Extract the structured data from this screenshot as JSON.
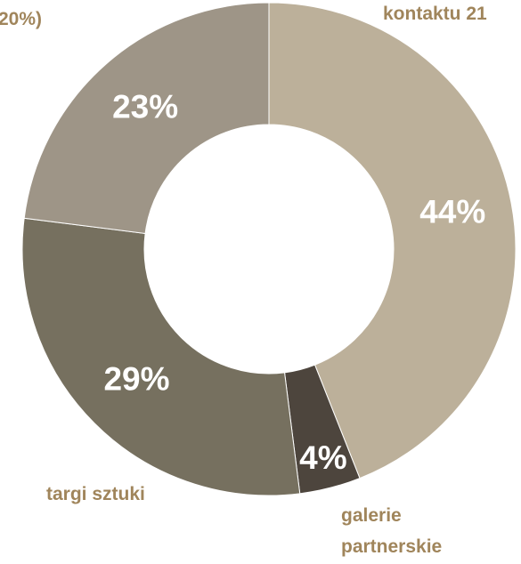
{
  "chart_data": {
    "type": "donut",
    "categories": [
      "kontaktu 21",
      "galerie partnerskie",
      "targi sztuki",
      "20%)"
    ],
    "values": [
      44,
      4,
      29,
      23
    ],
    "value_labels": [
      "44%",
      "4%",
      "29%",
      "23%"
    ],
    "colors": [
      "#bcb09a",
      "#4d453d",
      "#76705f",
      "#9e9587"
    ]
  }
}
